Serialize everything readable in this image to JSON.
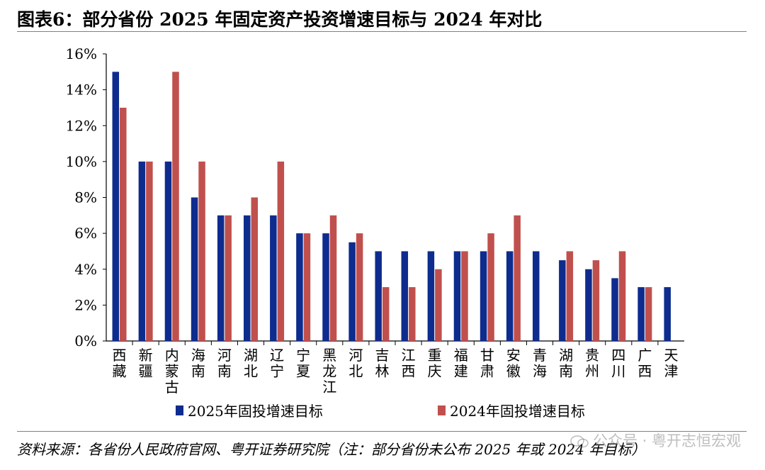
{
  "header": {
    "title": "图表6：部分省份 2025 年固定资产投资增速目标与 2024 年对比"
  },
  "chart_data": {
    "type": "bar",
    "title": "",
    "xlabel": "",
    "ylabel": "",
    "ylim": [
      0,
      16
    ],
    "yticks": [
      "0%",
      "2%",
      "4%",
      "6%",
      "8%",
      "10%",
      "12%",
      "14%",
      "16%"
    ],
    "grid": false,
    "legend_position": "bottom",
    "categories": [
      "西藏",
      "新疆",
      "内蒙古",
      "海南",
      "河南",
      "湖北",
      "辽宁",
      "宁夏",
      "黑龙江",
      "河北",
      "吉林",
      "江西",
      "重庆",
      "福建",
      "甘肃",
      "安徽",
      "青海",
      "湖南",
      "贵州",
      "四川",
      "广西",
      "天津"
    ],
    "series": [
      {
        "name": "2025年固投增速目标",
        "color": "#0e2c8e",
        "values": [
          15,
          10,
          10,
          8,
          7,
          7,
          7,
          6,
          6,
          5.5,
          5,
          5,
          5,
          5,
          5,
          5,
          5,
          4.5,
          4,
          3.5,
          3,
          3
        ]
      },
      {
        "name": "2024年固投增速目标",
        "color": "#c0504d",
        "values": [
          13,
          10,
          15,
          10,
          7,
          8,
          10,
          6,
          7,
          6,
          3,
          3,
          4,
          5,
          6,
          7,
          null,
          5,
          4.5,
          5,
          3,
          null
        ]
      }
    ]
  },
  "footer": {
    "source": "资料来源：各省份人民政府官网、粤开证券研究院（注：部分省份未公布 2025 年或 2024 年目标）",
    "watermark": "公众号 · 粤开志恒宏观"
  }
}
